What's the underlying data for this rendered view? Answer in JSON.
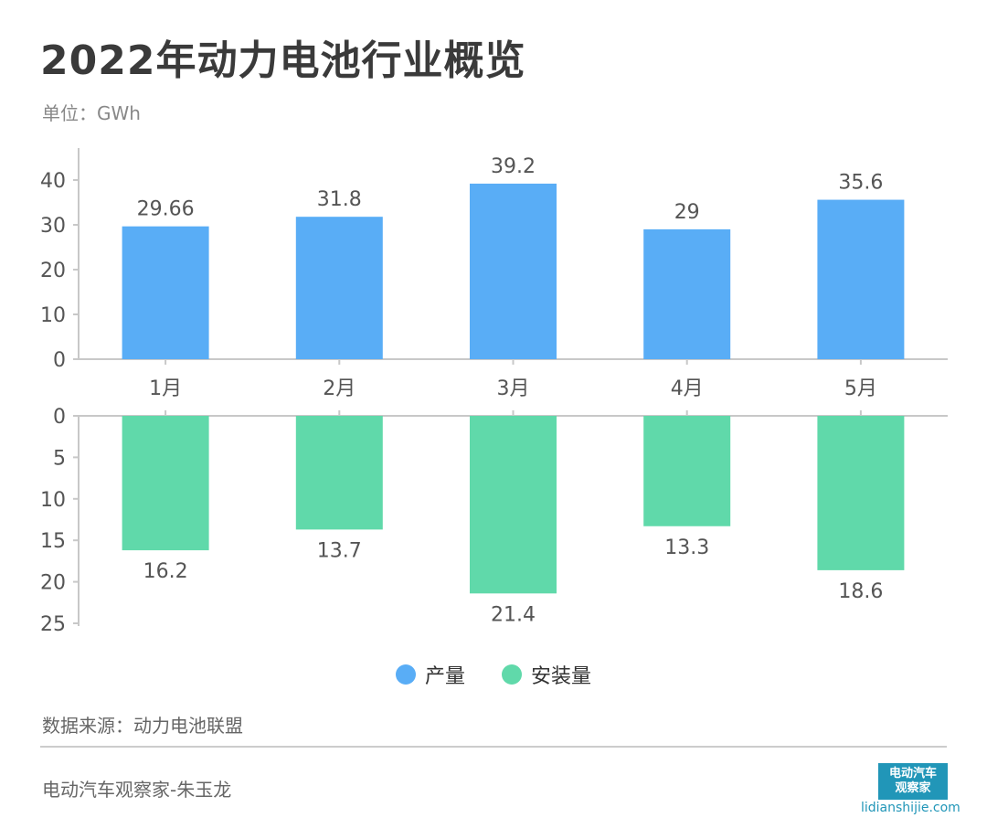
{
  "title": "2022年动力电池行业概览",
  "unit": "单位：GWh",
  "source": "数据来源：动力电池联盟",
  "author": "电动汽车观察家-朱玉龙",
  "logo": {
    "text": "电动汽车观察家",
    "site": "lidianshijie.com"
  },
  "colors": {
    "production": "#59adf6",
    "installation": "#60d9aa"
  },
  "chart_data": [
    {
      "type": "bar",
      "categories": [
        "1月",
        "2月",
        "3月",
        "4月",
        "5月"
      ],
      "series": [
        {
          "name": "产量",
          "values": [
            29.66,
            31.8,
            39.2,
            29,
            35.6
          ]
        }
      ],
      "value_labels": [
        "29.66",
        "31.8",
        "39.2",
        "29",
        "35.6"
      ],
      "yticks": [
        "0",
        "10",
        "20",
        "30",
        "40"
      ],
      "ylim": [
        0,
        47
      ]
    },
    {
      "type": "bar",
      "orientation": "downward",
      "categories": [
        "1月",
        "2月",
        "3月",
        "4月",
        "5月"
      ],
      "series": [
        {
          "name": "安装量",
          "values": [
            16.2,
            13.7,
            21.4,
            13.3,
            18.6
          ]
        }
      ],
      "value_labels": [
        "16.2",
        "13.7",
        "21.4",
        "13.3",
        "18.6"
      ],
      "yticks": [
        "0",
        "5",
        "10",
        "15",
        "20",
        "25"
      ],
      "ylim": [
        0,
        25
      ]
    }
  ],
  "legend": [
    {
      "label": "产量"
    },
    {
      "label": "安装量"
    }
  ]
}
